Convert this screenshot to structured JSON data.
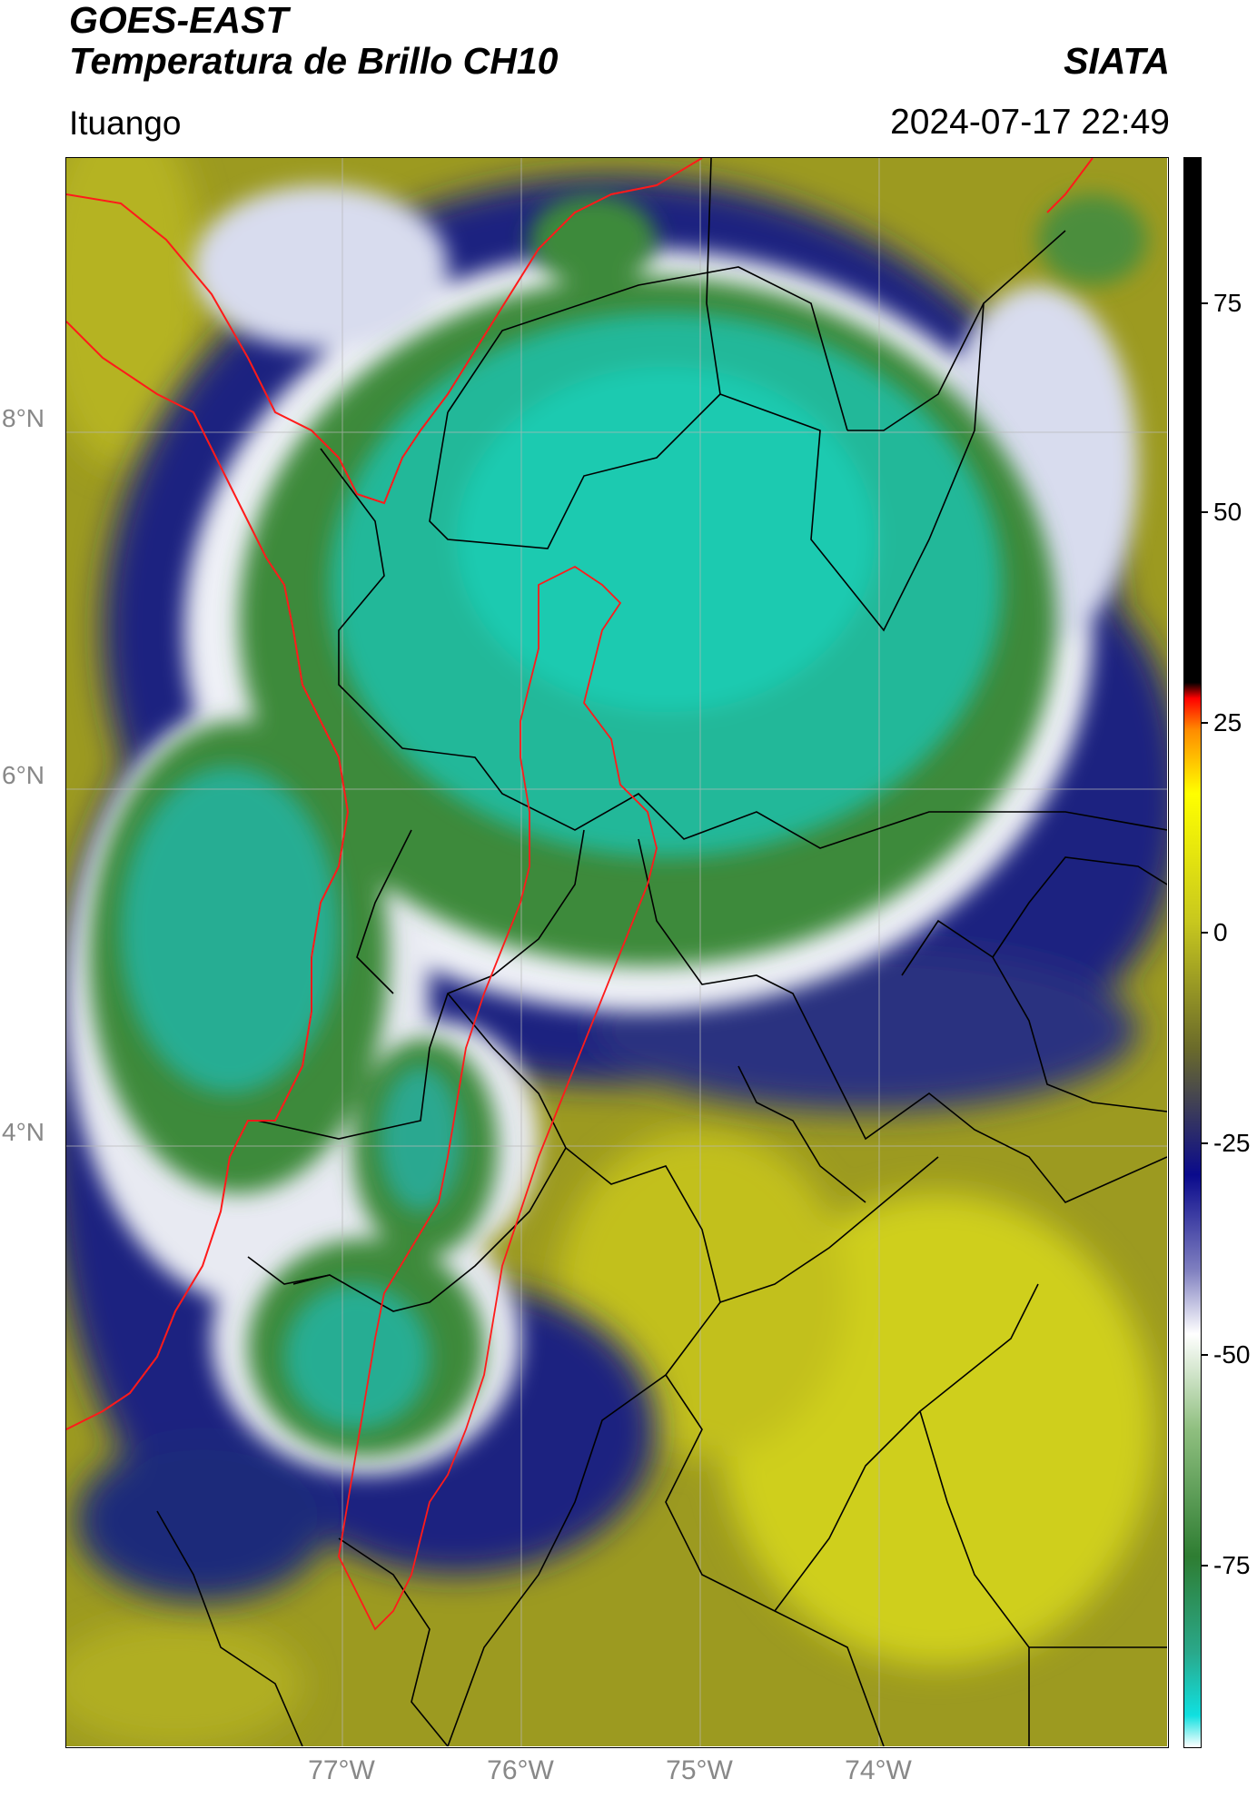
{
  "header": {
    "title_line1": "GOES-EAST",
    "title_line2": "Temperatura de Brillo CH10",
    "brand": "SIATA",
    "region": "Ituango",
    "timestamp": "2024-07-17 22:49"
  },
  "map": {
    "lat_labels": [
      "8°N",
      "6°N",
      "4°N"
    ],
    "lon_labels": [
      "77°W",
      "76°W",
      "75°W",
      "74°W"
    ],
    "colors": {
      "cold_core": "#1ec8a0",
      "green_ring": "#2f8a3c",
      "white_band": "#f4f4f8",
      "navy": "#141e7a",
      "olive": "#7c7a1c",
      "yellow": "#d4d418",
      "country_border": "#ff0000",
      "admin_border": "#000000"
    },
    "icons": [
      "colorbar-legend",
      "graticule-grid"
    ]
  },
  "colorbar": {
    "labels": [
      "75",
      "50",
      "25",
      "0",
      "-25",
      "-50",
      "-75"
    ],
    "range": [
      -93,
      90
    ],
    "stops": [
      "#ffffff",
      "#10e0e0",
      "#2aa88a",
      "#2e7d32",
      "#8fbf7f",
      "#ffffff",
      "#8080c0",
      "#0a0a8c",
      "#6b6b2a",
      "#c8c81e",
      "#ffff00",
      "#ff8c00",
      "#ff0000",
      "#000000"
    ]
  }
}
